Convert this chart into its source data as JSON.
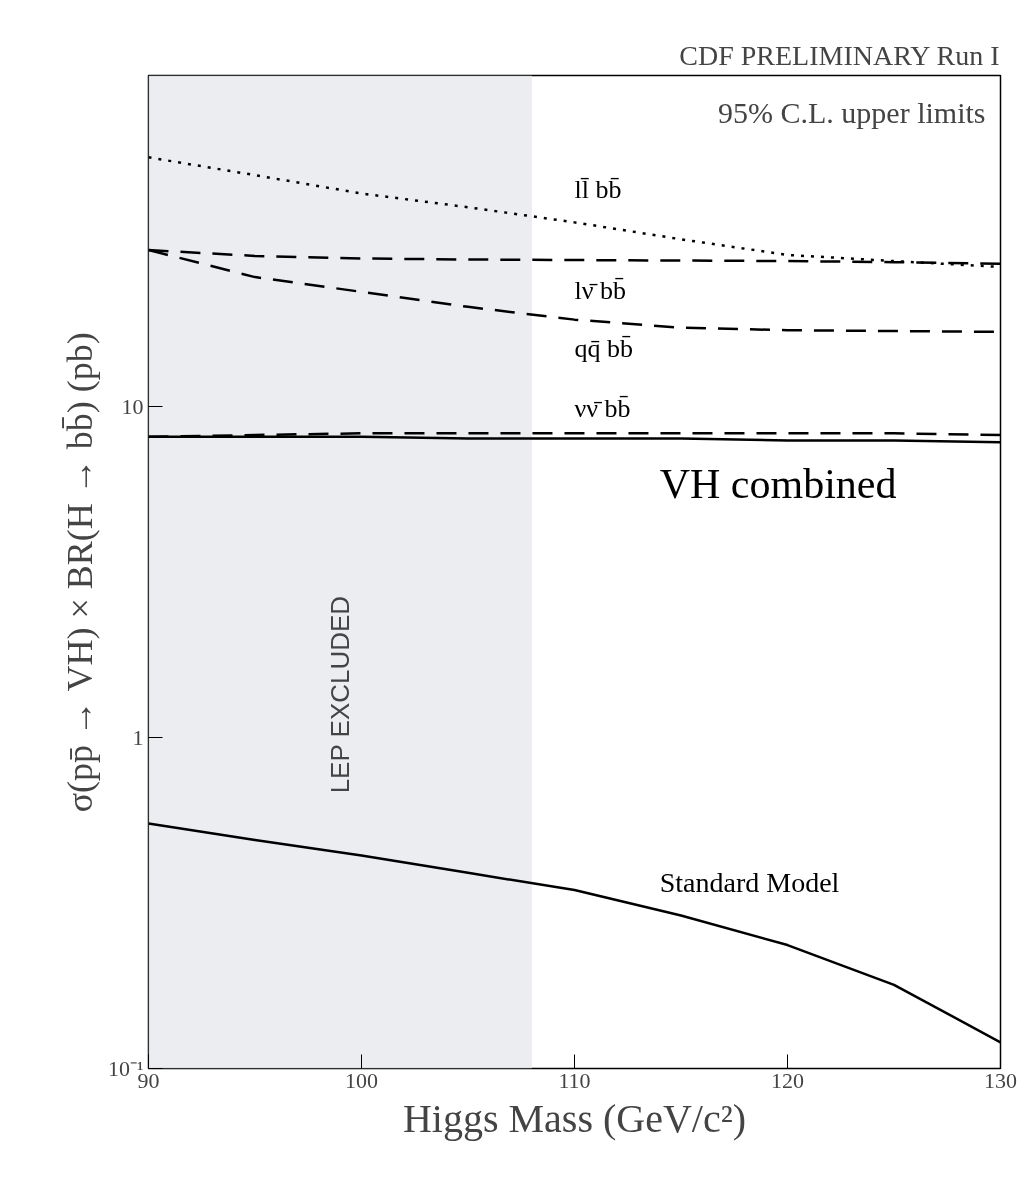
{
  "chart_data": {
    "type": "line",
    "title": "CDF PRELIMINARY Run I",
    "xlabel": "Higgs Mass (GeV/c²)",
    "ylabel": "σ(pp̄ → VH) × BR(H → bb̄) (pb)",
    "x": [
      90,
      95,
      100,
      105,
      110,
      115,
      120,
      125,
      130
    ],
    "series": [
      {
        "name": "ll̄ bb̄",
        "color": "#000000",
        "line_style": "dotted",
        "values": [
          56.6,
          50,
          44,
          40,
          36,
          32,
          28.7,
          27.5,
          26.4
        ]
      },
      {
        "name": "lν̄ bb̄",
        "color": "#000000",
        "line_style": "dashed",
        "values": [
          29.7,
          28.5,
          28,
          27.8,
          27.7,
          27.6,
          27.5,
          27.3,
          27
        ]
      },
      {
        "name": "qq̄ bb̄",
        "color": "#000000",
        "line_style": "dashed",
        "values": [
          29.7,
          24.6,
          22.2,
          20,
          18.3,
          17.3,
          17,
          16.9,
          16.8
        ]
      },
      {
        "name": "νν̄ bb̄",
        "color": "#000000",
        "line_style": "dashed",
        "values": [
          8.1,
          8.2,
          8.3,
          8.3,
          8.3,
          8.3,
          8.3,
          8.3,
          8.2
        ]
      },
      {
        "name": "VH combined",
        "color": "#000000",
        "line_style": "solid",
        "values": [
          8.1,
          8.1,
          8.1,
          8.0,
          8.0,
          8.0,
          7.9,
          7.9,
          7.8
        ]
      },
      {
        "name": "Standard Model",
        "color": "#000000",
        "line_style": "solid",
        "values": [
          0.55,
          0.49,
          0.44,
          0.39,
          0.346,
          0.29,
          0.236,
          0.179,
          0.12
        ]
      }
    ],
    "annotations": [
      "95% C.L. upper limits"
    ],
    "bands": [
      {
        "axis": "x",
        "from": 90,
        "to": 108,
        "label": "LEP EXCLUDED",
        "color": "#e6e9ee"
      }
    ],
    "log": "y",
    "xlim": [
      90,
      130
    ],
    "ylim": [
      0.1,
      100
    ],
    "xticks": [
      90,
      100,
      110,
      120,
      130
    ],
    "yticks": [
      {
        "value": 0.1,
        "label": "10⁻¹"
      },
      1,
      10
    ],
    "grid": false
  }
}
